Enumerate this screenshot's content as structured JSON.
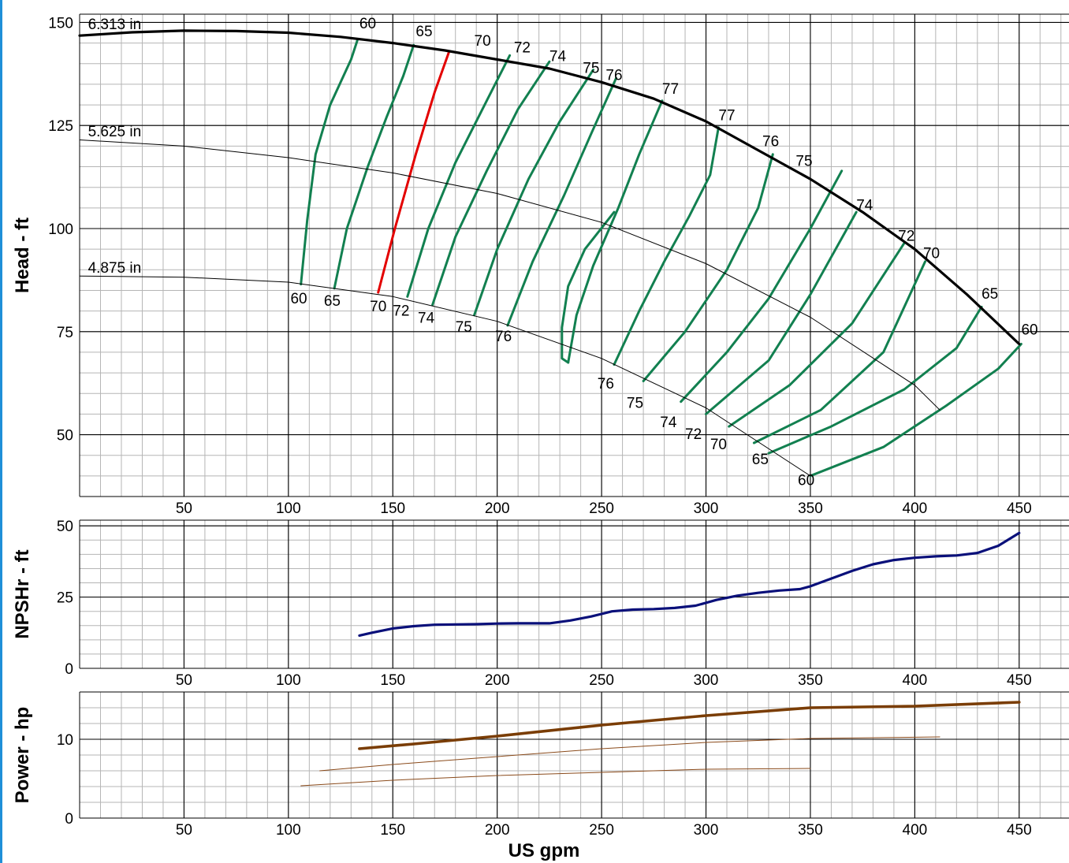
{
  "chart_data": [
    {
      "type": "line",
      "ylabel": "Head - ft",
      "xlim": [
        0,
        475
      ],
      "ylim": [
        35,
        152
      ],
      "x_ticks": [
        "50",
        "100",
        "150",
        "200",
        "250",
        "300",
        "350",
        "400",
        "450"
      ],
      "y_ticks": [
        "50",
        "75",
        "100",
        "125",
        "150"
      ],
      "x_tick_values": [
        50,
        100,
        150,
        200,
        250,
        300,
        350,
        400,
        450
      ],
      "y_tick_values": [
        50,
        75,
        100,
        125,
        150
      ],
      "grid": true,
      "impeller_curves": [
        {
          "name": "6.313 in",
          "x": [
            0,
            25,
            50,
            75,
            100,
            125,
            150,
            175,
            200,
            225,
            250,
            275,
            300,
            325,
            350,
            375,
            400,
            425,
            450
          ],
          "y": [
            146.8,
            147.6,
            148,
            147.9,
            147.5,
            146.5,
            145,
            143.2,
            141,
            138.8,
            135.5,
            131.5,
            126,
            119,
            112,
            104,
            95,
            84,
            72
          ]
        },
        {
          "name": "5.625 in",
          "x": [
            0,
            50,
            100,
            150,
            200,
            250,
            300,
            350,
            400,
            412
          ],
          "y": [
            121.5,
            120,
            117.2,
            113.5,
            108.5,
            101.5,
            91.5,
            78.5,
            62,
            56
          ]
        },
        {
          "name": "4.875 in",
          "x": [
            0,
            50,
            100,
            150,
            200,
            250,
            300,
            350
          ],
          "y": [
            88.5,
            88.2,
            87,
            83.5,
            77.5,
            68.5,
            56.5,
            40
          ]
        }
      ],
      "efficiency_contours": [
        {
          "label_top": "60",
          "label_bottom": "60",
          "x": [
            106,
            109,
            113,
            120,
            130,
            133
          ],
          "y": [
            86.5,
            102,
            118,
            130,
            141,
            145.6
          ]
        },
        {
          "label_top": "65",
          "label_bottom": "65",
          "x": [
            122,
            128,
            138,
            147,
            155,
            160
          ],
          "y": [
            85.5,
            100,
            115,
            127,
            137,
            144.5
          ]
        },
        {
          "label_top": "70",
          "label_bottom": "70",
          "highlight": true,
          "x": [
            143,
            151,
            161,
            170,
            177
          ],
          "y": [
            84.5,
            100,
            118,
            133,
            143
          ]
        },
        {
          "label_top": "70",
          "label_bottom": "72",
          "x": [
            157,
            167,
            180,
            195,
            206
          ],
          "y": [
            83.5,
            100,
            116,
            131,
            142
          ]
        },
        {
          "label_top": "72",
          "label_bottom": "74",
          "x": [
            169,
            180,
            195,
            210,
            225
          ],
          "y": [
            81.5,
            98,
            114,
            129,
            140.5
          ]
        },
        {
          "label_top": "74",
          "label_bottom": "75",
          "x": [
            189,
            200,
            215,
            230,
            246
          ],
          "y": [
            79,
            95,
            112,
            126,
            138.5
          ]
        },
        {
          "label_top": "75",
          "label_bottom": "76",
          "x": [
            205,
            217,
            232,
            245,
            257
          ],
          "y": [
            76.5,
            92,
            108,
            123,
            136.5
          ]
        },
        {
          "label_top": "76",
          "label_bottom": "76",
          "x": [
            256,
            268,
            280,
            292,
            302,
            306
          ],
          "y": [
            67,
            80,
            92,
            103,
            113,
            124.5
          ]
        },
        {
          "label_top": "77",
          "label_bottom": "",
          "x": [
            279,
            268,
            258,
            246,
            238,
            234
          ],
          "y": [
            131,
            118,
            105,
            91,
            79,
            67.5
          ]
        },
        {
          "label_top": "77",
          "label_bottom": "",
          "x": [
            234,
            231,
            231,
            234,
            242,
            256
          ],
          "y": [
            67.5,
            68.5,
            76,
            86,
            95,
            104
          ]
        },
        {
          "label_top": "76",
          "label_bottom": "75",
          "x": [
            270,
            290,
            310,
            325,
            332
          ],
          "y": [
            63,
            75,
            90,
            105,
            118
          ]
        },
        {
          "label_top": "75",
          "label_bottom": "74",
          "x": [
            288,
            310,
            330,
            350,
            365
          ],
          "y": [
            58,
            70,
            83,
            100,
            114
          ]
        },
        {
          "label_top": "74",
          "label_bottom": "72",
          "x": [
            300,
            330,
            350,
            372
          ],
          "y": [
            55,
            68,
            84,
            104
          ]
        },
        {
          "label_top": "72",
          "label_bottom": "70",
          "x": [
            311,
            340,
            370,
            395
          ],
          "y": [
            52,
            62,
            77,
            96.5
          ]
        },
        {
          "label_top": "70",
          "label_bottom": "",
          "x": [
            323,
            355,
            385,
            405
          ],
          "y": [
            48,
            56,
            70,
            92
          ]
        },
        {
          "label_top": "65",
          "label_bottom": "65",
          "x": [
            330,
            360,
            395,
            420,
            432
          ],
          "y": [
            45.5,
            52,
            61,
            71,
            81
          ]
        },
        {
          "label_top": "60",
          "label_bottom": "60",
          "x": [
            350,
            385,
            415,
            440,
            451
          ],
          "y": [
            40,
            47,
            57,
            66,
            72
          ]
        }
      ],
      "labels": [
        {
          "text": "6.313 in"
        },
        {
          "text": "5.625 in"
        },
        {
          "text": "4.875 in"
        },
        {
          "text": "60"
        },
        {
          "text": "65"
        },
        {
          "text": "70"
        },
        {
          "text": "72"
        },
        {
          "text": "74"
        },
        {
          "text": "75"
        },
        {
          "text": "76"
        },
        {
          "text": "77"
        },
        {
          "text": "77"
        },
        {
          "text": "76"
        },
        {
          "text": "75"
        },
        {
          "text": "74"
        },
        {
          "text": "72"
        },
        {
          "text": "70"
        },
        {
          "text": "65"
        },
        {
          "text": "60"
        },
        {
          "text": "60"
        },
        {
          "text": "65"
        },
        {
          "text": "70"
        },
        {
          "text": "72"
        },
        {
          "text": "74"
        },
        {
          "text": "75"
        },
        {
          "text": "76"
        },
        {
          "text": "76"
        },
        {
          "text": "75"
        },
        {
          "text": "74"
        },
        {
          "text": "72"
        },
        {
          "text": "70"
        },
        {
          "text": "65"
        },
        {
          "text": "60"
        }
      ]
    },
    {
      "type": "line",
      "ylabel": "NPSHr - ft",
      "xlim": [
        0,
        475
      ],
      "ylim": [
        0,
        52
      ],
      "x_ticks": [
        "50",
        "100",
        "150",
        "200",
        "250",
        "300",
        "350",
        "400",
        "450"
      ],
      "y_ticks": [
        "0",
        "25",
        "50"
      ],
      "x_tick_values": [
        50,
        100,
        150,
        200,
        250,
        300,
        350,
        400,
        450
      ],
      "y_tick_values": [
        0,
        25,
        50
      ],
      "grid": true,
      "series": [
        {
          "x": [
            134,
            140,
            150,
            160,
            170,
            180,
            190,
            200,
            210,
            220,
            225,
            235,
            245,
            255,
            265,
            275,
            285,
            295,
            305,
            315,
            325,
            335,
            345,
            350,
            360,
            370,
            380,
            390,
            400,
            410,
            420,
            430,
            440,
            450
          ],
          "y": [
            11.5,
            12.5,
            14,
            14.8,
            15.3,
            15.4,
            15.5,
            15.7,
            15.8,
            15.8,
            15.8,
            16.8,
            18.2,
            20,
            20.6,
            20.8,
            21.2,
            22,
            24,
            25.5,
            26.5,
            27.3,
            27.8,
            28.8,
            31.5,
            34.2,
            36.5,
            38,
            38.8,
            39.3,
            39.6,
            40.5,
            43,
            47.5
          ]
        }
      ]
    },
    {
      "type": "line",
      "ylabel": "Power - hp",
      "xlabel": "US gpm",
      "xlim": [
        0,
        475
      ],
      "ylim": [
        0,
        16
      ],
      "x_ticks": [
        "50",
        "100",
        "150",
        "200",
        "250",
        "300",
        "350",
        "400",
        "450"
      ],
      "y_ticks": [
        "0",
        "10"
      ],
      "x_tick_values": [
        50,
        100,
        150,
        200,
        250,
        300,
        350,
        400,
        450
      ],
      "y_tick_values": [
        0,
        10
      ],
      "grid": true,
      "series": [
        {
          "x": [
            134,
            160,
            200,
            250,
            300,
            350,
            400,
            450
          ],
          "y": [
            8.8,
            9.4,
            10.4,
            11.8,
            13.0,
            14.0,
            14.2,
            14.7
          ]
        },
        {
          "x": [
            115,
            150,
            200,
            250,
            300,
            350,
            412
          ],
          "y": [
            6.0,
            6.8,
            7.8,
            8.8,
            9.6,
            10.1,
            10.3
          ]
        },
        {
          "x": [
            106,
            150,
            200,
            250,
            300,
            350
          ],
          "y": [
            4.1,
            4.8,
            5.4,
            5.8,
            6.2,
            6.3
          ]
        }
      ]
    }
  ],
  "colors": {
    "grid_major": "#000000",
    "grid_minor": "#b5b5b5",
    "head_max": "#000000",
    "head_other": "#000000",
    "efficiency": "#128050",
    "efficiency_highlight": "#e30000",
    "npshr": "#0a107a",
    "power_max": "#7a3d05",
    "power_other": "#8a4a1a"
  }
}
